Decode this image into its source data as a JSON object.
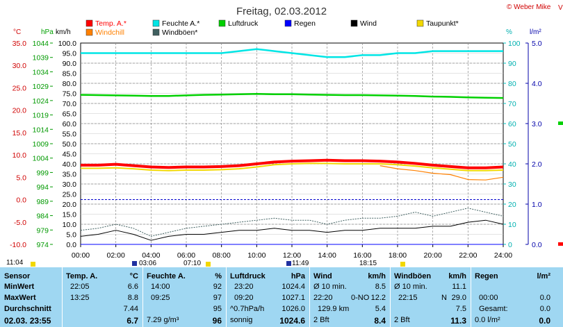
{
  "header": {
    "title": "Freitag, 02.03.2012",
    "copyright": "© Weber Mike"
  },
  "legend": [
    {
      "label": "Temp. A.*",
      "color": "#ff0000"
    },
    {
      "label": "Feuchte A.*",
      "color": "#00e5e5"
    },
    {
      "label": "Luftdruck",
      "color": "#00d000"
    },
    {
      "label": "Regen",
      "color": "#0000ff"
    },
    {
      "label": "Wind",
      "color": "#000000"
    },
    {
      "label": "Taupunkt*",
      "color": "#f2d800"
    },
    {
      "label": "Windchill",
      "color": "#ff8000"
    },
    {
      "label": "Windböen*",
      "color": "#406060"
    }
  ],
  "axes": {
    "temp_unit": "°C",
    "press_unit": "hPa",
    "wind_unit": "km/h",
    "hum_unit": "%",
    "rain_unit": "l/m²",
    "temp_ticks": [
      "35.0",
      "30.0",
      "25.0",
      "20.0",
      "15.0",
      "10.0",
      "5.0",
      "0.0",
      "-5.0",
      "-10.0"
    ],
    "press_ticks": [
      "1044",
      "1039",
      "1034",
      "1029",
      "1024",
      "1019",
      "1014",
      "1009",
      "1004",
      "999",
      "994",
      "989",
      "984",
      "979",
      "974"
    ],
    "wind_ticks": [
      "100.0",
      "95.0",
      "90.0",
      "85.0",
      "80.0",
      "75.0",
      "70.0",
      "65.0",
      "60.0",
      "55.0",
      "50.0",
      "45.0",
      "40.0",
      "35.0",
      "30.0",
      "25.0",
      "20.0",
      "15.0",
      "10.0",
      "5.0",
      "0.0"
    ],
    "hum_ticks": [
      "100",
      "90",
      "80",
      "70",
      "60",
      "50",
      "40",
      "30",
      "20",
      "10",
      "0"
    ],
    "rain_ticks": [
      "5.0",
      "4.0",
      "3.0",
      "2.0",
      "1.0",
      "0.0"
    ],
    "time_ticks": [
      "00:00",
      "02:00",
      "04:00",
      "06:00",
      "08:00",
      "10:00",
      "12:00",
      "14:00",
      "16:00",
      "18:00",
      "20:00",
      "22:00",
      "24:00"
    ]
  },
  "sun_times": [
    "11:04",
    "03:06",
    "07:10",
    "11:49",
    "18:15"
  ],
  "colors": {
    "temp": "#ff0000",
    "hum": "#00e5e5",
    "press": "#00d000",
    "rain": "#0000ff",
    "wind": "#000000",
    "dew": "#f2d800",
    "chill": "#ff8000",
    "gust": "#406060",
    "table_bg": "#9fd7f2"
  },
  "chart_data": {
    "type": "line",
    "x": [
      "00:00",
      "01:00",
      "02:00",
      "03:00",
      "04:00",
      "05:00",
      "06:00",
      "07:00",
      "08:00",
      "09:00",
      "10:00",
      "11:00",
      "12:00",
      "13:00",
      "14:00",
      "15:00",
      "16:00",
      "17:00",
      "18:00",
      "19:00",
      "20:00",
      "21:00",
      "22:00",
      "23:00",
      "24:00"
    ],
    "x_range": [
      "00:00",
      "24:00"
    ],
    "series": [
      {
        "name": "Temp. A.*",
        "axis": "temp",
        "ylim": [
          -10,
          35
        ],
        "values": [
          7.7,
          7.7,
          7.9,
          7.6,
          7.3,
          7.2,
          7.3,
          7.3,
          7.4,
          7.6,
          8.0,
          8.4,
          8.6,
          8.7,
          8.8,
          8.7,
          8.7,
          8.6,
          8.4,
          8.1,
          7.7,
          7.4,
          7.1,
          7.1,
          7.3
        ]
      },
      {
        "name": "Feuchte A.*",
        "axis": "hum",
        "ylim": [
          0,
          100
        ],
        "values": [
          95,
          95,
          95,
          95,
          95,
          95,
          95,
          95,
          95,
          96,
          97,
          96,
          95,
          94,
          93,
          93,
          94,
          94,
          95,
          95,
          96,
          96,
          96,
          96,
          96
        ]
      },
      {
        "name": "Luftdruck",
        "axis": "press",
        "ylim": [
          974,
          1044
        ],
        "values": [
          1026.0,
          1025.9,
          1025.8,
          1025.7,
          1025.6,
          1025.6,
          1025.8,
          1026.0,
          1026.1,
          1026.2,
          1026.3,
          1026.2,
          1026.2,
          1026.1,
          1026.0,
          1025.9,
          1025.9,
          1025.8,
          1025.7,
          1025.6,
          1025.4,
          1025.3,
          1025.1,
          1025.0,
          1024.9
        ]
      },
      {
        "name": "Taupunkt*",
        "axis": "temp",
        "ylim": [
          -10,
          35
        ],
        "values": [
          7.0,
          7.0,
          7.1,
          6.9,
          6.6,
          6.5,
          6.6,
          6.6,
          6.7,
          6.9,
          7.3,
          7.8,
          8.0,
          8.1,
          8.1,
          8.0,
          8.0,
          8.0,
          7.8,
          7.5,
          7.1,
          6.8,
          6.5,
          6.5,
          6.6
        ]
      },
      {
        "name": "Windchill",
        "axis": "temp",
        "ylim": [
          -10,
          35
        ],
        "values": [
          null,
          null,
          null,
          null,
          null,
          null,
          null,
          null,
          null,
          null,
          null,
          null,
          null,
          null,
          null,
          null,
          null,
          7.6,
          6.9,
          6.5,
          5.9,
          5.6,
          4.5,
          4.4,
          5.0
        ]
      },
      {
        "name": "Wind",
        "axis": "wind",
        "ylim": [
          0,
          100
        ],
        "values": [
          4,
          5,
          7,
          5,
          2,
          4,
          5,
          5,
          6,
          7,
          7,
          8,
          7,
          7,
          6,
          7,
          7,
          8,
          8,
          8,
          9,
          9,
          11,
          12,
          10
        ]
      },
      {
        "name": "Windböen*",
        "axis": "wind",
        "ylim": [
          0,
          100
        ],
        "values": [
          7,
          8,
          10,
          8,
          4,
          6,
          8,
          9,
          10,
          11,
          12,
          13,
          12,
          12,
          10,
          12,
          13,
          13,
          14,
          16,
          14,
          16,
          18,
          16,
          14
        ]
      },
      {
        "name": "Regen",
        "axis": "rain",
        "ylim": [
          0,
          5
        ],
        "values": [
          0,
          0,
          0,
          0,
          0,
          0,
          0,
          0,
          0,
          0,
          0,
          0,
          0,
          0,
          0,
          0,
          0,
          0,
          0,
          0,
          0,
          0,
          0,
          0,
          0
        ]
      }
    ],
    "right_edge_markers": [
      {
        "color": "#ff0000",
        "value": "0.0"
      },
      {
        "color": "#00d000",
        "value": "3.0"
      }
    ],
    "right_edge_label": "V"
  },
  "table": {
    "sensor": {
      "header": "Sensor",
      "rows": [
        "MinWert",
        "MaxWert",
        "Durchschnitt",
        "02.03.  23:55"
      ]
    },
    "temp": {
      "header": "Temp. A.",
      "unit": "°C",
      "rows": [
        [
          "22:05",
          "6.6"
        ],
        [
          "13:25",
          "8.8"
        ],
        [
          "",
          "7.44"
        ],
        [
          "",
          "6.7"
        ]
      ]
    },
    "hum": {
      "header": "Feuchte A.",
      "unit": "%",
      "rows": [
        [
          "14:00",
          "92"
        ],
        [
          "09:25",
          "97"
        ],
        [
          "",
          "95"
        ],
        [
          "7.29 g/m³",
          "96"
        ]
      ]
    },
    "press": {
      "header": "Luftdruck",
      "unit": "hPa",
      "rows": [
        [
          "23:20",
          "1024.4"
        ],
        [
          "09:20",
          "1027.1"
        ],
        [
          "^0.7hPa/h",
          "1026.0"
        ],
        [
          "sonnig",
          "1024.6"
        ]
      ]
    },
    "wind": {
      "header": "Wind",
      "unit": "km/h",
      "rows": [
        [
          "Ø 10 min.",
          "",
          "8.5"
        ],
        [
          "22:20",
          "0-NO",
          "12.2"
        ],
        [
          "129.9 km",
          "",
          "5.4"
        ],
        [
          "2 Bft",
          "",
          "8.4"
        ]
      ]
    },
    "gust": {
      "header": "Windböen",
      "unit": "km/h",
      "rows": [
        [
          "Ø 10 min.",
          "",
          "11.1"
        ],
        [
          "22:15",
          "N",
          "29.0"
        ],
        [
          "",
          "",
          "7.5"
        ],
        [
          "2 Bft",
          "",
          "11.3"
        ]
      ]
    },
    "rain": {
      "header": "Regen",
      "unit": "l/m²",
      "rows": [
        [
          "",
          ""
        ],
        [
          "00:00",
          "0.0"
        ],
        [
          "Gesamt:",
          "0.0"
        ],
        [
          "0.0 l/m²",
          "0.0"
        ]
      ]
    }
  }
}
